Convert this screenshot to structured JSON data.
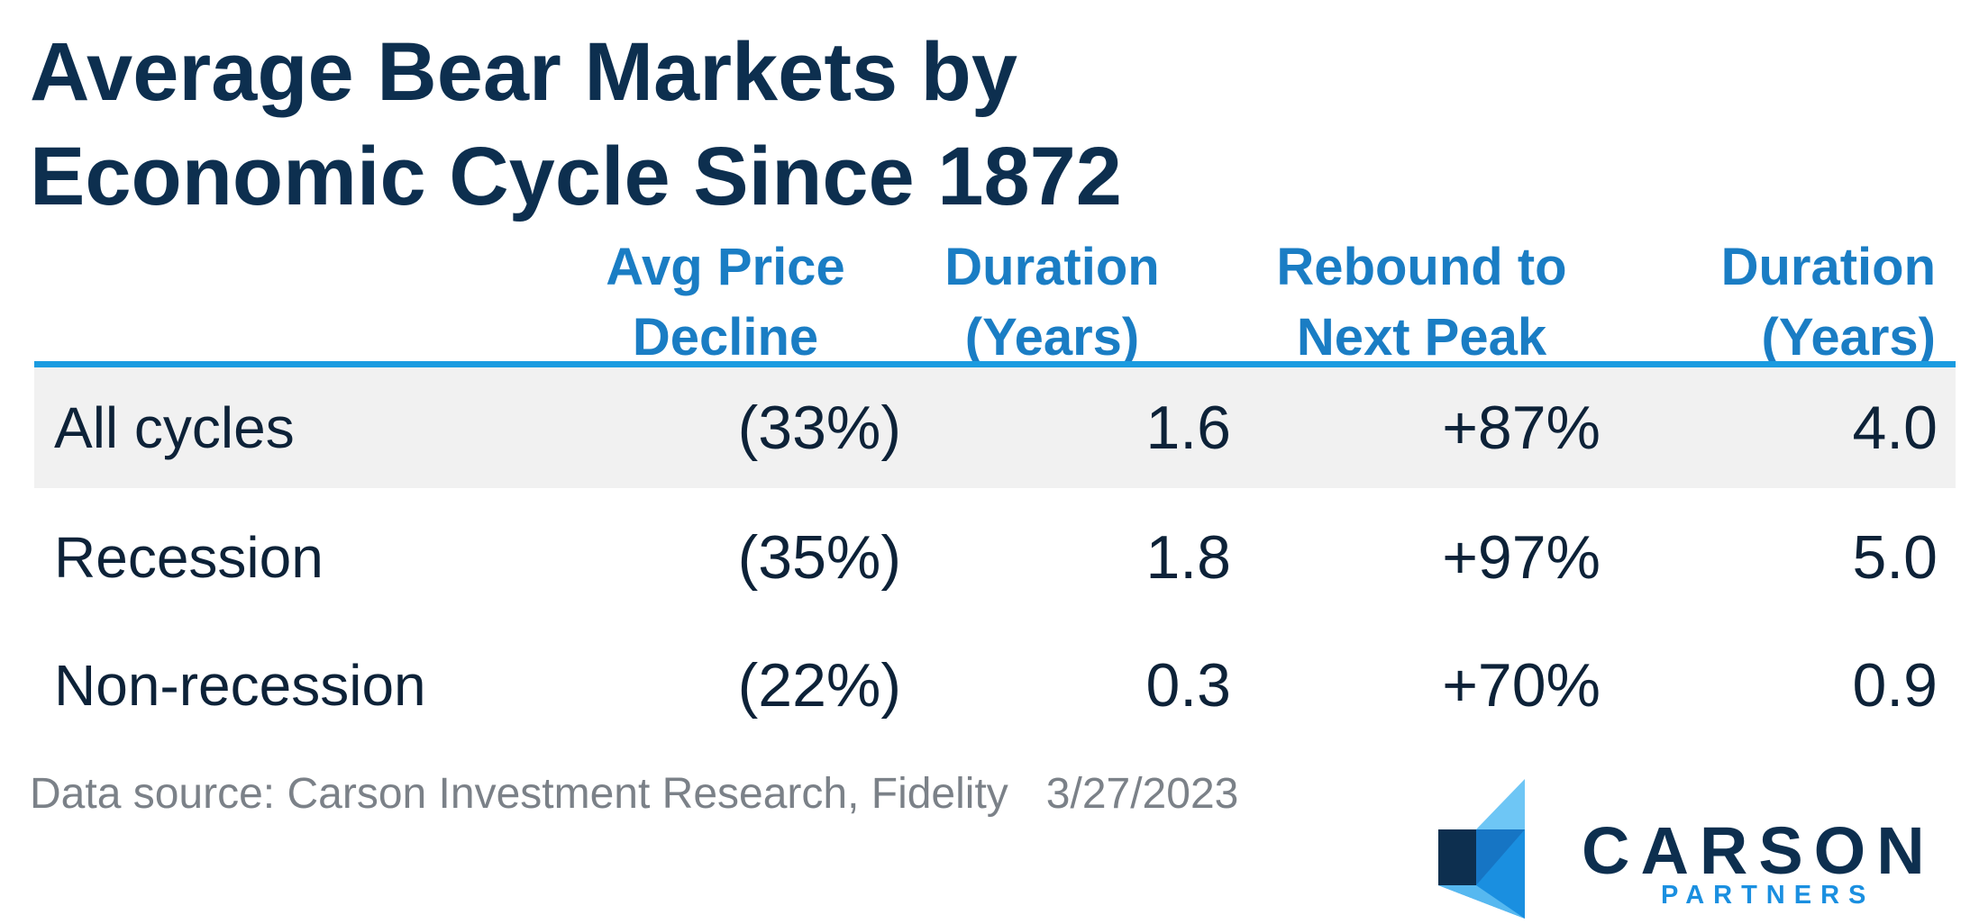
{
  "title": {
    "line1": "Average Bear Markets by",
    "line2": "Economic Cycle Since 1872"
  },
  "table": {
    "headers": [
      {
        "line1": "Avg Price",
        "line2": "Decline"
      },
      {
        "line1": "Duration",
        "line2": "(Years)"
      },
      {
        "line1": "Rebound to",
        "line2": "Next Peak"
      },
      {
        "line1": "Duration",
        "line2": "(Years)"
      }
    ],
    "rows": [
      {
        "label": "All cycles",
        "values": [
          "(33%)",
          "1.6",
          "+87%",
          "4.0"
        ]
      },
      {
        "label": "Recession",
        "values": [
          "(35%)",
          "1.8",
          "+97%",
          "5.0"
        ]
      },
      {
        "label": "Non-recession",
        "values": [
          "(22%)",
          "0.3",
          "+70%",
          "0.9"
        ]
      }
    ]
  },
  "footer": {
    "source": "Data source: Carson Investment Research, Fidelity",
    "date": "3/27/2023"
  },
  "logo": {
    "name": "CARSON",
    "sub": "PARTNERS"
  },
  "colors": {
    "title": "#0d2f4f",
    "header": "#1a7dc4",
    "rule": "#1a9be0",
    "row_shade": "#f1f1f1",
    "source_text": "#7b8188",
    "logo_light": "#6ec6f5",
    "logo_mid": "#1a8fe0",
    "logo_dark": "#0d2f4f"
  }
}
